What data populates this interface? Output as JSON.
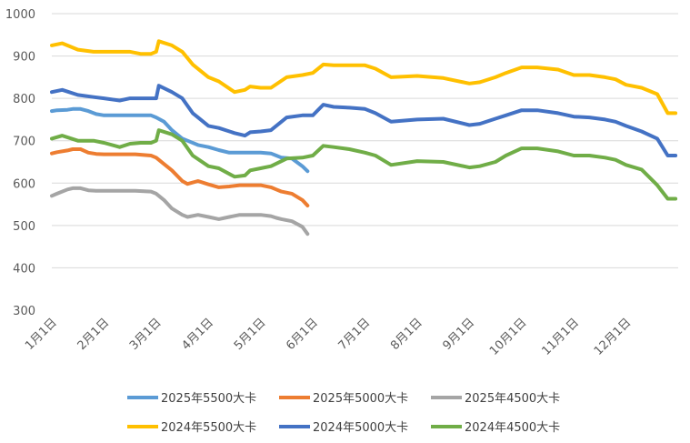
{
  "chart_data": {
    "type": "line",
    "title": "",
    "xlabel": "",
    "ylabel": "",
    "ylim": [
      300,
      1000
    ],
    "yticks": [
      "300",
      "400",
      "500",
      "600",
      "700",
      "800",
      "900",
      "1000"
    ],
    "xticks": [
      "1月1日",
      "2月1日",
      "3月1日",
      "4月1日",
      "5月1日",
      "6月1日",
      "7月1日",
      "8月1日",
      "9月1日",
      "10月1日",
      "11月1日",
      "12月1日"
    ],
    "grid": true,
    "legend_position": "bottom",
    "series": [
      {
        "name": "2025年5500大卡",
        "color": "#5b9bd5",
        "x": [
          0,
          0.1,
          0.3,
          0.4,
          0.55,
          0.7,
          0.85,
          1.0,
          1.3,
          1.6,
          1.9,
          2.0,
          2.15,
          2.3,
          2.5,
          2.6,
          2.8,
          3.0,
          3.2,
          3.4,
          3.6,
          3.8,
          4.0,
          4.2,
          4.3,
          4.4,
          4.6,
          4.8,
          4.9
        ],
        "values": [
          770,
          772,
          773,
          775,
          775,
          770,
          763,
          760,
          760,
          760,
          760,
          755,
          745,
          725,
          705,
          700,
          690,
          685,
          678,
          672,
          672,
          672,
          672,
          670,
          665,
          660,
          658,
          640,
          628
        ]
      },
      {
        "name": "2025年5000大卡",
        "color": "#ed7d31",
        "x": [
          0,
          0.1,
          0.3,
          0.4,
          0.55,
          0.7,
          0.85,
          1.0,
          1.3,
          1.6,
          1.9,
          2.0,
          2.15,
          2.3,
          2.5,
          2.6,
          2.8,
          3.0,
          3.2,
          3.4,
          3.6,
          3.8,
          4.0,
          4.2,
          4.3,
          4.4,
          4.6,
          4.8,
          4.9
        ],
        "values": [
          670,
          673,
          677,
          680,
          680,
          672,
          669,
          668,
          668,
          668,
          665,
          660,
          645,
          630,
          605,
          598,
          605,
          597,
          590,
          592,
          595,
          595,
          595,
          590,
          585,
          580,
          575,
          560,
          547
        ]
      },
      {
        "name": "2025年4500大卡",
        "color": "#a5a5a5",
        "x": [
          0,
          0.1,
          0.3,
          0.4,
          0.55,
          0.7,
          0.85,
          1.0,
          1.3,
          1.6,
          1.9,
          2.0,
          2.15,
          2.3,
          2.5,
          2.6,
          2.8,
          3.0,
          3.2,
          3.4,
          3.6,
          3.8,
          4.0,
          4.2,
          4.3,
          4.4,
          4.6,
          4.8,
          4.9
        ],
        "values": [
          570,
          575,
          585,
          588,
          588,
          583,
          582,
          582,
          582,
          582,
          580,
          575,
          560,
          540,
          525,
          520,
          525,
          520,
          515,
          520,
          525,
          525,
          525,
          522,
          518,
          515,
          510,
          497,
          480
        ]
      },
      {
        "name": "2024年5500大卡",
        "color": "#ffc000",
        "x": [
          0,
          0.2,
          0.5,
          0.8,
          1.0,
          1.3,
          1.5,
          1.7,
          1.9,
          2.0,
          2.05,
          2.3,
          2.5,
          2.7,
          3.0,
          3.2,
          3.5,
          3.7,
          3.8,
          4.0,
          4.2,
          4.5,
          4.8,
          5.0,
          5.2,
          5.4,
          5.7,
          6.0,
          6.2,
          6.5,
          7.0,
          7.5,
          8.0,
          8.2,
          8.5,
          8.7,
          9.0,
          9.3,
          9.7,
          10.0,
          10.3,
          10.6,
          10.8,
          11.0,
          11.3,
          11.6,
          11.8,
          11.95
        ],
        "values": [
          925,
          930,
          915,
          910,
          910,
          910,
          910,
          905,
          905,
          910,
          935,
          925,
          910,
          880,
          850,
          840,
          815,
          820,
          828,
          825,
          825,
          850,
          855,
          860,
          880,
          878,
          878,
          878,
          870,
          850,
          853,
          848,
          835,
          838,
          850,
          860,
          873,
          873,
          868,
          855,
          855,
          850,
          845,
          832,
          825,
          810,
          765,
          765
        ]
      },
      {
        "name": "2024年5000大卡",
        "color": "#4472c4",
        "x": [
          0,
          0.2,
          0.5,
          0.8,
          1.0,
          1.3,
          1.5,
          1.7,
          1.9,
          2.0,
          2.05,
          2.3,
          2.5,
          2.7,
          3.0,
          3.2,
          3.5,
          3.7,
          3.8,
          4.0,
          4.2,
          4.5,
          4.8,
          5.0,
          5.2,
          5.4,
          5.7,
          6.0,
          6.2,
          6.5,
          7.0,
          7.5,
          8.0,
          8.2,
          8.5,
          8.7,
          9.0,
          9.3,
          9.7,
          10.0,
          10.3,
          10.6,
          10.8,
          11.0,
          11.3,
          11.6,
          11.8,
          11.95
        ],
        "values": [
          815,
          820,
          808,
          803,
          800,
          795,
          800,
          800,
          800,
          800,
          830,
          815,
          800,
          765,
          735,
          730,
          718,
          712,
          720,
          722,
          725,
          755,
          760,
          760,
          785,
          780,
          778,
          775,
          765,
          745,
          750,
          752,
          737,
          740,
          752,
          760,
          772,
          772,
          765,
          757,
          755,
          750,
          745,
          735,
          722,
          705,
          665,
          665
        ]
      },
      {
        "name": "2024年4500大卡",
        "color": "#70ad47",
        "x": [
          0,
          0.2,
          0.5,
          0.8,
          1.0,
          1.3,
          1.5,
          1.7,
          1.9,
          2.0,
          2.05,
          2.3,
          2.5,
          2.7,
          3.0,
          3.2,
          3.5,
          3.7,
          3.8,
          4.0,
          4.2,
          4.5,
          4.8,
          5.0,
          5.2,
          5.4,
          5.7,
          6.0,
          6.2,
          6.5,
          7.0,
          7.5,
          8.0,
          8.2,
          8.5,
          8.7,
          9.0,
          9.3,
          9.7,
          10.0,
          10.3,
          10.6,
          10.8,
          11.0,
          11.3,
          11.6,
          11.8,
          11.95
        ],
        "values": [
          705,
          712,
          700,
          700,
          695,
          685,
          693,
          695,
          695,
          700,
          725,
          715,
          700,
          665,
          640,
          635,
          615,
          618,
          630,
          635,
          640,
          658,
          660,
          665,
          688,
          685,
          680,
          672,
          665,
          643,
          652,
          650,
          637,
          640,
          650,
          665,
          682,
          682,
          675,
          665,
          665,
          660,
          655,
          643,
          632,
          595,
          563,
          563
        ]
      }
    ]
  }
}
